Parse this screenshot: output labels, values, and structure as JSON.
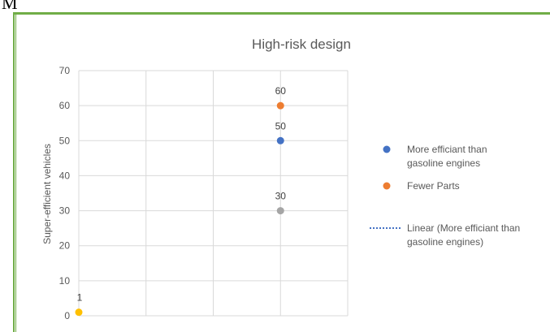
{
  "page": {
    "stray_text": "M"
  },
  "colors": {
    "frame_border": "#70ad47",
    "gridline": "#d9d9d9",
    "axis_text": "#595959",
    "title_text": "#595959"
  },
  "chart_data": {
    "type": "scatter",
    "title": "High-risk design",
    "xlabel": "",
    "ylabel": "Super-efficient vehicles",
    "ylim": [
      0,
      70
    ],
    "yticks": [
      0,
      10,
      20,
      30,
      40,
      50,
      60,
      70
    ],
    "xlim": [
      0,
      4
    ],
    "vertical_gridlines": [
      0,
      1,
      2,
      3,
      4
    ],
    "grid": true,
    "legend_position": "right",
    "points": [
      {
        "x": 0,
        "y": 1,
        "label": "1",
        "color": "#ffc000"
      },
      {
        "x": 3,
        "y": 60,
        "label": "60",
        "color": "#ed7d31"
      },
      {
        "x": 3,
        "y": 50,
        "label": "50",
        "color": "#4472c4"
      },
      {
        "x": 3,
        "y": 30,
        "label": "30",
        "color": "#a5a5a5"
      }
    ],
    "legend": [
      {
        "kind": "marker",
        "color": "#4472c4",
        "lines": [
          "More efficiant than",
          "gasoline engines"
        ]
      },
      {
        "kind": "marker",
        "color": "#ed7d31",
        "lines": [
          "Fewer Parts"
        ]
      },
      {
        "kind": "dotted-line",
        "color": "#4472c4",
        "lines": [
          "Linear (More efficiant than",
          "gasoline engines)"
        ]
      }
    ]
  }
}
